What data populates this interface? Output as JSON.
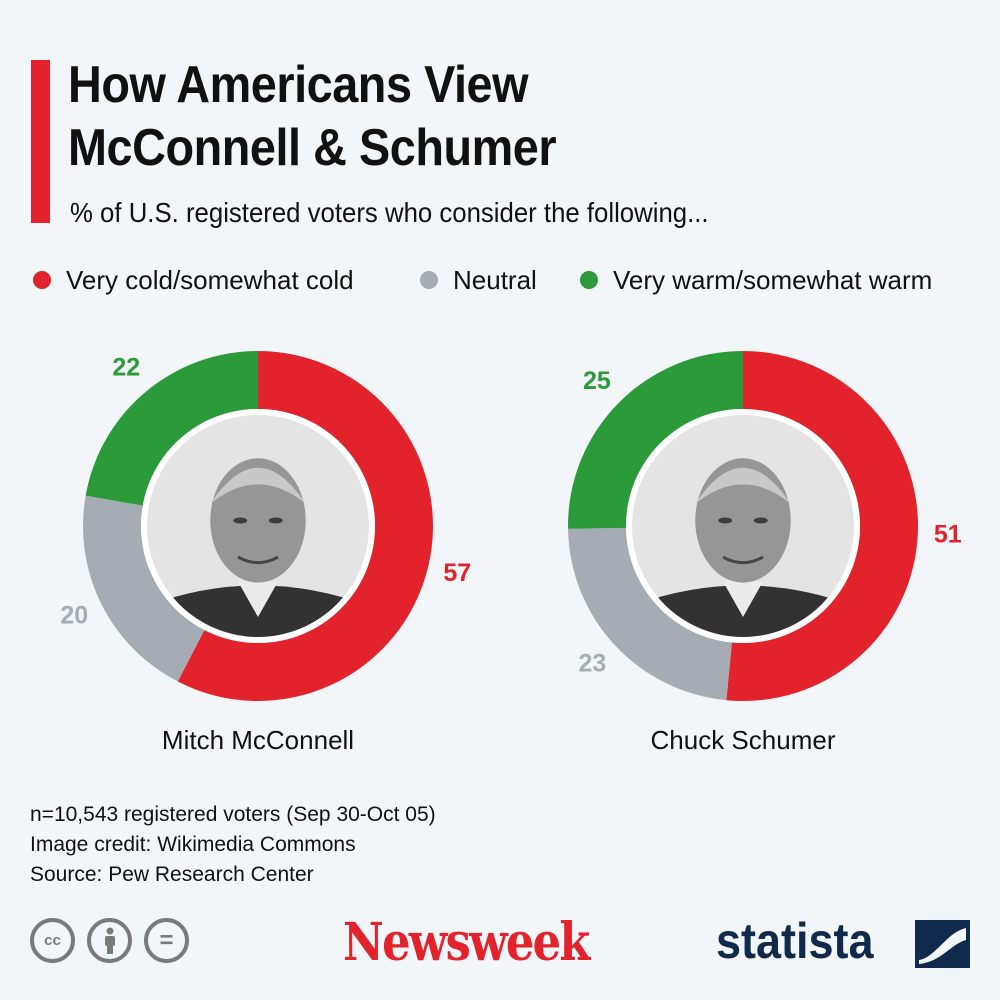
{
  "header": {
    "title_line1": "How Americans View",
    "title_line2": "McConnell & Schumer",
    "subtitle": "% of U.S. registered voters who consider the following..."
  },
  "legend": [
    {
      "label": "Very cold/somewhat cold",
      "color": "#e3232c"
    },
    {
      "label": "Neutral",
      "color": "#a5acb3"
    },
    {
      "label": "Very warm/somewhat warm",
      "color": "#2b9b3a"
    }
  ],
  "chart_data": [
    {
      "type": "pie",
      "subtype": "donut",
      "name": "Mitch McConnell",
      "unit": "%",
      "categories": [
        "Very cold/somewhat cold",
        "Neutral",
        "Very warm/somewhat warm"
      ],
      "values": [
        57,
        20,
        22
      ],
      "colors": [
        "#e3232c",
        "#a5acb3",
        "#2b9b3a"
      ],
      "center_image": "portrait-photo"
    },
    {
      "type": "pie",
      "subtype": "donut",
      "name": "Chuck Schumer",
      "unit": "%",
      "categories": [
        "Very cold/somewhat cold",
        "Neutral",
        "Very warm/somewhat warm"
      ],
      "values": [
        51,
        23,
        25
      ],
      "colors": [
        "#e3232c",
        "#a5acb3",
        "#2b9b3a"
      ],
      "center_image": "portrait-photo"
    }
  ],
  "footer": {
    "sample": "n=10,543 registered voters (Sep 30-Oct 05)",
    "image_credit": "Image credit: Wikimedia Commons",
    "source": "Source: Pew Research Center",
    "license_icons": [
      "cc-icon",
      "attribution-icon",
      "no-derivatives-icon"
    ],
    "license_glyphs": [
      "cc",
      "=",
      "="
    ],
    "newsweek_logo": "Newsweek",
    "statista_logo": "statista"
  }
}
